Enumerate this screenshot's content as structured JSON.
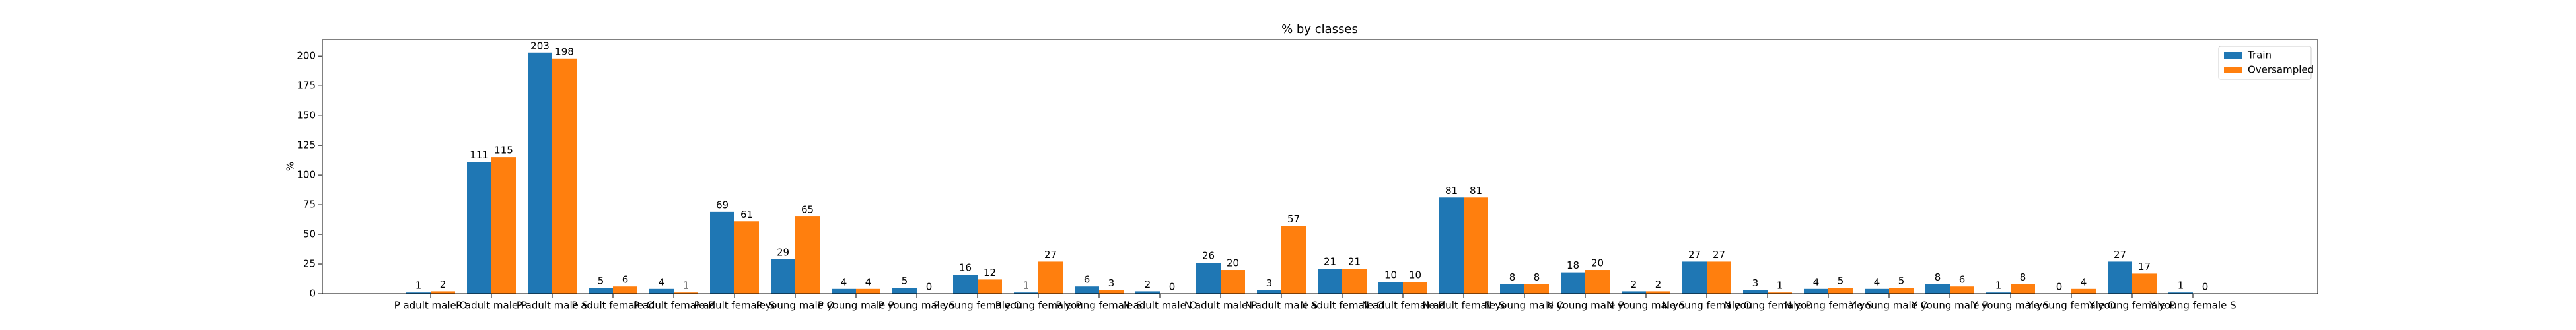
{
  "chart_data": {
    "type": "bar",
    "title": "% by classes",
    "y_label": "%",
    "categories": [
      "P adult male O",
      "P adult male P",
      "P adult male S",
      "P adult female O",
      "P adult female P",
      "P adult female S",
      "P young male O",
      "P young male P",
      "P young male S",
      "P young female O",
      "P young female P",
      "P young female S",
      "N adult male O",
      "N adult male P",
      "N adult male S",
      "N adult female O",
      "N adult female P",
      "N adult female S",
      "N young male O",
      "N young male P",
      "N young male S",
      "N young female O",
      "N young female P",
      "N young female S",
      "Y young male O",
      "Y young male P",
      "Y young male S",
      "Y young female O",
      "Y young female P",
      "Y young female S"
    ],
    "series": [
      {
        "name": "Train",
        "color": "#1f77b4",
        "values": [
          1,
          111,
          203,
          5,
          4,
          69,
          29,
          4,
          5,
          16,
          1,
          6,
          2,
          26,
          3,
          21,
          10,
          81,
          8,
          18,
          2,
          27,
          3,
          4,
          4,
          8,
          1,
          0,
          27,
          1
        ]
      },
      {
        "name": "Oversampled",
        "color": "#ff7f0e",
        "values": [
          2,
          115,
          198,
          6,
          1,
          61,
          65,
          4,
          0,
          12,
          27,
          3,
          0,
          20,
          57,
          21,
          10,
          81,
          8,
          20,
          2,
          27,
          1,
          5,
          5,
          6,
          8,
          4,
          17,
          0
        ]
      }
    ],
    "ylim": [
      0,
      214
    ],
    "yticks": [
      0,
      25,
      50,
      75,
      100,
      125,
      150,
      175,
      200
    ],
    "legend": "upper right"
  }
}
